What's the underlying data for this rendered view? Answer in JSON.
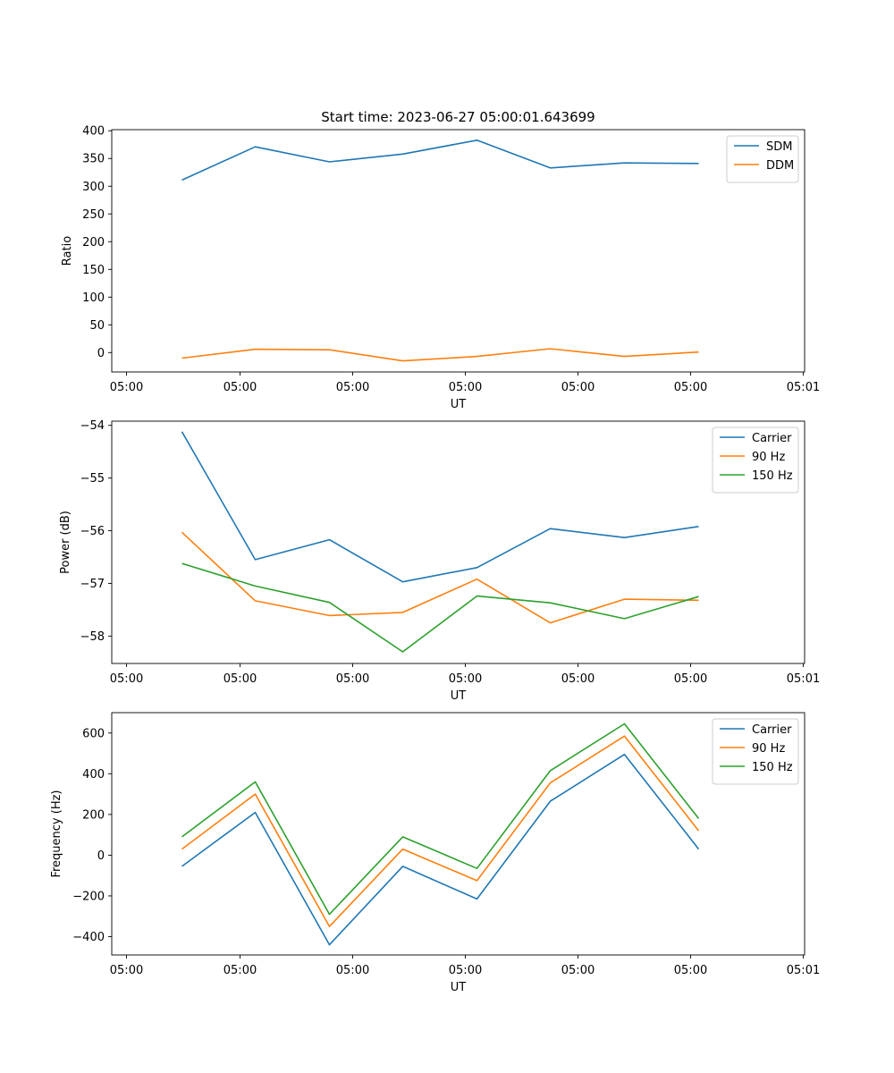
{
  "chart_data": [
    {
      "type": "line",
      "title": "Start time: 2023-06-27 05:00:01.643699",
      "xlabel": "UT",
      "ylabel": "Ratio",
      "x_ticklabels": [
        "05:00",
        "05:00",
        "05:00",
        "05:00",
        "05:00",
        "05:00",
        "05:01"
      ],
      "yticks": [
        0,
        50,
        100,
        150,
        200,
        250,
        300,
        350,
        400
      ],
      "ylim": [
        -35,
        402
      ],
      "legend": "top-right",
      "series": [
        {
          "name": "SDM",
          "color": "#1f77b4",
          "values": [
            311,
            371,
            344,
            358,
            383,
            333,
            342,
            341
          ]
        },
        {
          "name": "DDM",
          "color": "#ff7f0e",
          "values": [
            -10,
            6,
            5,
            -15,
            -7,
            7,
            -7,
            1
          ]
        }
      ]
    },
    {
      "type": "line",
      "title": "",
      "xlabel": "UT",
      "ylabel": "Power (dB)",
      "x_ticklabels": [
        "05:00",
        "05:00",
        "05:00",
        "05:00",
        "05:00",
        "05:00",
        "05:01"
      ],
      "yticks": [
        -58,
        -57,
        -56,
        -55,
        -54
      ],
      "ytick_labels": [
        "−58",
        "−57",
        "−56",
        "−55",
        "−54"
      ],
      "ylim": [
        -58.52,
        -53.92
      ],
      "legend": "top-right",
      "series": [
        {
          "name": "Carrier",
          "color": "#1f77b4",
          "values": [
            -54.12,
            -56.55,
            -56.17,
            -56.97,
            -56.7,
            -55.96,
            -56.13,
            -55.92
          ]
        },
        {
          "name": "90 Hz",
          "color": "#ff7f0e",
          "values": [
            -56.03,
            -57.33,
            -57.61,
            -57.55,
            -56.92,
            -57.75,
            -57.3,
            -57.32
          ]
        },
        {
          "name": "150 Hz",
          "color": "#2ca02c",
          "values": [
            -56.62,
            -57.05,
            -57.36,
            -58.3,
            -57.24,
            -57.37,
            -57.67,
            -57.25
          ]
        }
      ]
    },
    {
      "type": "line",
      "title": "",
      "xlabel": "UT",
      "ylabel": "Frequency (Hz)",
      "x_ticklabels": [
        "05:00",
        "05:00",
        "05:00",
        "05:00",
        "05:00",
        "05:00",
        "05:01"
      ],
      "yticks": [
        -400,
        -200,
        0,
        200,
        400,
        600
      ],
      "ytick_labels": [
        "−400",
        "−200",
        "0",
        "200",
        "400",
        "600"
      ],
      "ylim": [
        -490,
        700
      ],
      "legend": "top-right",
      "series": [
        {
          "name": "Carrier",
          "color": "#1f77b4",
          "values": [
            -55,
            210,
            -440,
            -55,
            -215,
            265,
            495,
            30
          ]
        },
        {
          "name": "90 Hz",
          "color": "#ff7f0e",
          "values": [
            30,
            300,
            -350,
            30,
            -125,
            355,
            585,
            120
          ]
        },
        {
          "name": "150 Hz",
          "color": "#2ca02c",
          "values": [
            90,
            360,
            -290,
            90,
            -65,
            415,
            645,
            180
          ]
        }
      ]
    }
  ]
}
